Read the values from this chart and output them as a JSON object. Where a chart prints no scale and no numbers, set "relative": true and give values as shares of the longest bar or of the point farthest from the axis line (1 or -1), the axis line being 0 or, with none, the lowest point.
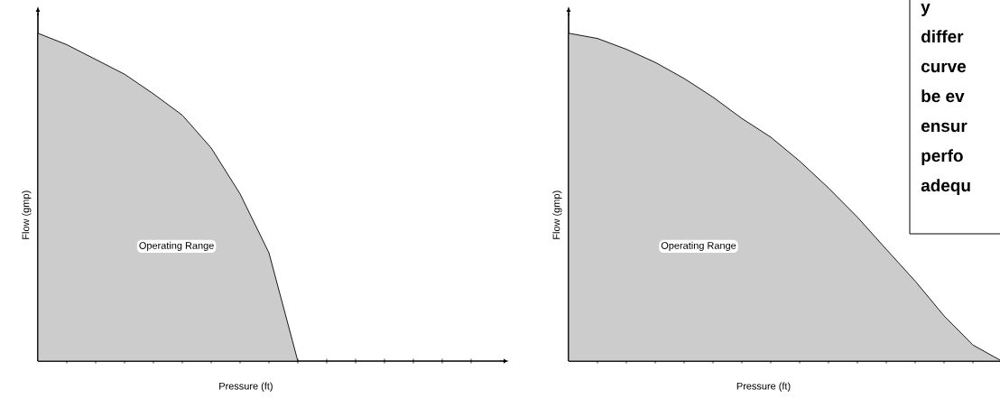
{
  "chart_data": [
    {
      "type": "area",
      "relative": true,
      "categories": [
        null,
        null,
        null,
        null,
        null,
        null,
        null,
        null,
        null,
        null,
        null,
        null,
        null,
        null,
        null,
        null,
        null
      ],
      "values": [
        1.0,
        0.965,
        0.92,
        0.875,
        0.815,
        0.75,
        0.65,
        0.51,
        0.33,
        0.0,
        null,
        null,
        null,
        null,
        null,
        null,
        null
      ],
      "color": "#cccccc",
      "xlabel": "Pressure (ft)",
      "ylabel": "Flow (gmp)",
      "annotations": [
        "Operating Range"
      ]
    },
    {
      "type": "area",
      "relative": true,
      "categories": [
        null,
        null,
        null,
        null,
        null,
        null,
        null,
        null,
        null,
        null,
        null,
        null,
        null,
        null,
        null,
        null
      ],
      "values": [
        1.0,
        0.984,
        0.951,
        0.911,
        0.862,
        0.805,
        0.74,
        0.683,
        0.61,
        0.528,
        0.439,
        0.341,
        0.244,
        0.138,
        0.049,
        0.0
      ],
      "color": "#cccccc",
      "xlabel": "Pressure (ft)",
      "ylabel": "Flow (gmp)",
      "annotations": [
        "Operating Range",
        "y",
        "differ",
        "curve",
        "be ev",
        "ensur",
        "perfo",
        "adequ"
      ]
    }
  ]
}
